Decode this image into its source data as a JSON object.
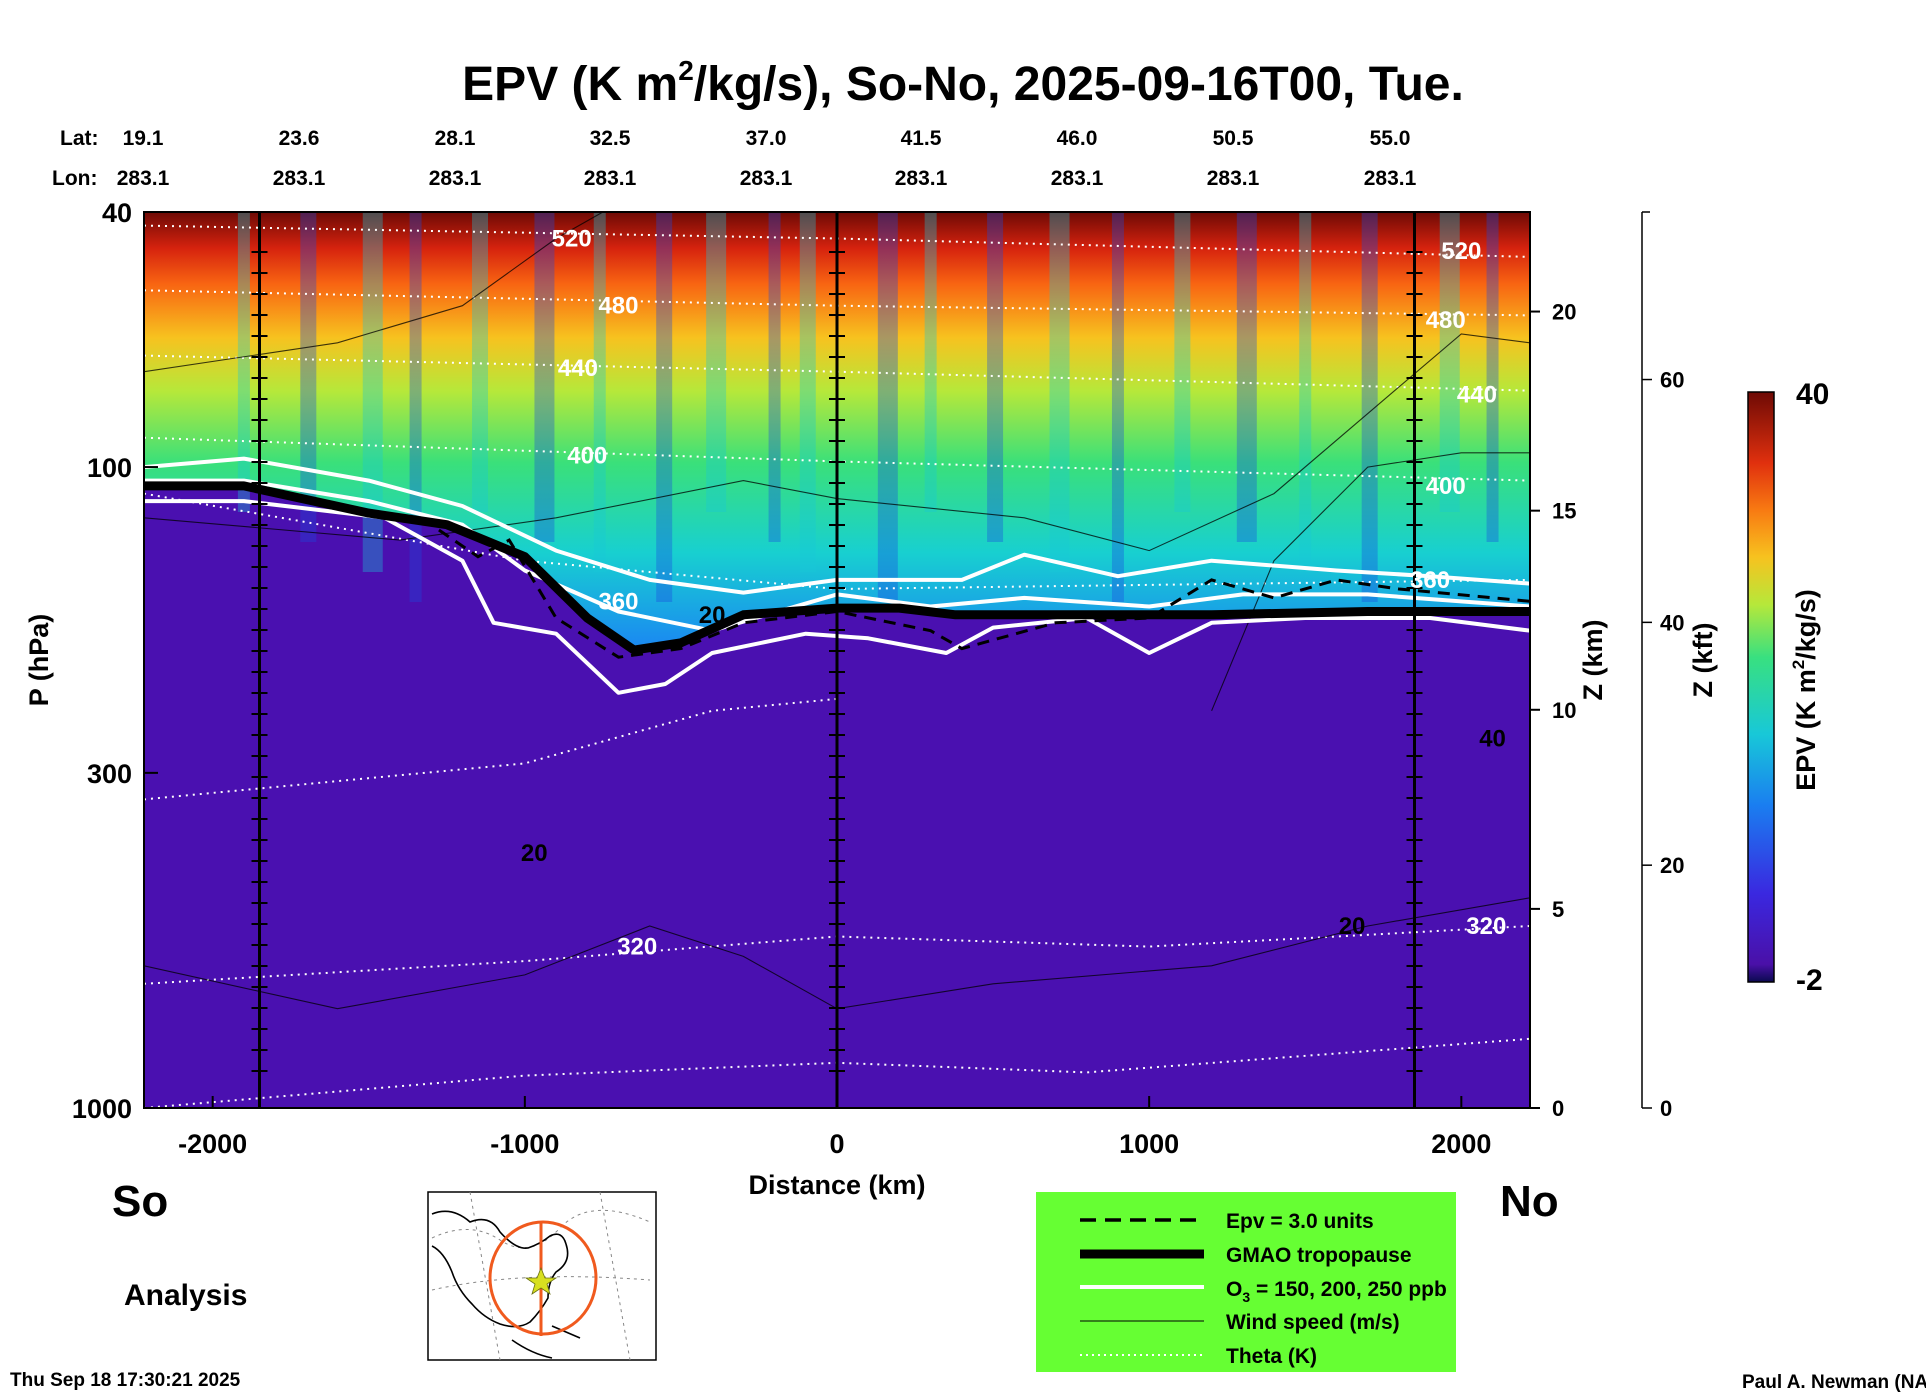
{
  "chart_data": {
    "type": "heatmap",
    "title_main": "EPV (K m",
    "title_sup": "2",
    "title_rest": "/kg/s), So-No, 2025-09-16T00, Tue.",
    "row_labels": {
      "lat": "Lat:",
      "lon": "Lon:"
    },
    "lat_labels": [
      "19.1",
      "23.6",
      "28.1",
      "32.5",
      "37.0",
      "41.5",
      "46.0",
      "50.5",
      "55.0"
    ],
    "lon_labels": [
      "283.1",
      "283.1",
      "283.1",
      "283.1",
      "283.1",
      "283.1",
      "283.1",
      "283.1",
      "283.1"
    ],
    "xlabel": "Distance (km)",
    "x_ticks": [
      -2000,
      -1000,
      0,
      1000,
      2000
    ],
    "x_range": [
      -2220,
      2220
    ],
    "ylabel": "P (hPa)",
    "y_ticks": [
      40,
      100,
      300,
      1000
    ],
    "y_range": [
      1000,
      40
    ],
    "y_scale": "log",
    "z_km_label": "Z (km)",
    "z_km_ticks": [
      0,
      5,
      10,
      15,
      20
    ],
    "z_kft_label": "Z (kft)",
    "z_kft_ticks": [
      0,
      20,
      40,
      60
    ],
    "colorbar": {
      "label_main": "EPV (K m",
      "label_sup": "2",
      "label_rest": "/kg/s)",
      "min": -2,
      "max": 40,
      "min_label": "-2",
      "max_label": "40"
    },
    "vertical_lines_km": [
      -1850,
      0,
      1850
    ],
    "theta_labels": [
      {
        "text": "520",
        "x": -850,
        "p": 44
      },
      {
        "text": "480",
        "x": -700,
        "p": 56
      },
      {
        "text": "440",
        "x": -830,
        "p": 70
      },
      {
        "text": "400",
        "x": -800,
        "p": 96
      },
      {
        "text": "360",
        "x": -700,
        "p": 162
      },
      {
        "text": "320",
        "x": -640,
        "p": 560
      },
      {
        "text": "520",
        "x": 2000,
        "p": 46
      },
      {
        "text": "480",
        "x": 1950,
        "p": 59
      },
      {
        "text": "440",
        "x": 2050,
        "p": 77
      },
      {
        "text": "400",
        "x": 1950,
        "p": 107
      },
      {
        "text": "360",
        "x": 1900,
        "p": 150
      },
      {
        "text": "320",
        "x": 2080,
        "p": 520
      }
    ],
    "wind_labels": [
      {
        "text": "20",
        "x": -400,
        "p": 170
      },
      {
        "text": "20",
        "x": -970,
        "p": 400
      },
      {
        "text": "20",
        "x": 1650,
        "p": 520
      },
      {
        "text": "40",
        "x": 2100,
        "p": 265
      }
    ],
    "epv_surface": [
      {
        "x": -2220,
        "p": 108
      },
      {
        "x": -1900,
        "p": 108
      },
      {
        "x": -1600,
        "p": 115
      },
      {
        "x": -1300,
        "p": 123
      },
      {
        "x": -1150,
        "p": 138
      },
      {
        "x": -1050,
        "p": 130
      },
      {
        "x": -900,
        "p": 172
      },
      {
        "x": -700,
        "p": 198
      },
      {
        "x": -500,
        "p": 192
      },
      {
        "x": -300,
        "p": 175
      },
      {
        "x": 0,
        "p": 168
      },
      {
        "x": 300,
        "p": 180
      },
      {
        "x": 400,
        "p": 192
      },
      {
        "x": 700,
        "p": 175
      },
      {
        "x": 1000,
        "p": 172
      },
      {
        "x": 1200,
        "p": 150
      },
      {
        "x": 1400,
        "p": 160
      },
      {
        "x": 1600,
        "p": 150
      },
      {
        "x": 1800,
        "p": 155
      },
      {
        "x": 2220,
        "p": 162
      }
    ],
    "tropopause": [
      {
        "x": -2220,
        "p": 107
      },
      {
        "x": -1900,
        "p": 107
      },
      {
        "x": -1500,
        "p": 118
      },
      {
        "x": -1250,
        "p": 123
      },
      {
        "x": -1130,
        "p": 130
      },
      {
        "x": -1000,
        "p": 138
      },
      {
        "x": -800,
        "p": 172
      },
      {
        "x": -650,
        "p": 193
      },
      {
        "x": -500,
        "p": 188
      },
      {
        "x": -300,
        "p": 170
      },
      {
        "x": 0,
        "p": 166
      },
      {
        "x": 200,
        "p": 166
      },
      {
        "x": 380,
        "p": 170
      },
      {
        "x": 450,
        "p": 170
      },
      {
        "x": 1200,
        "p": 170
      },
      {
        "x": 1700,
        "p": 168
      },
      {
        "x": 2220,
        "p": 168
      }
    ],
    "ozone_150": [
      {
        "x": -2220,
        "p": 100
      },
      {
        "x": -1900,
        "p": 97
      },
      {
        "x": -1500,
        "p": 105
      },
      {
        "x": -1200,
        "p": 115
      },
      {
        "x": -900,
        "p": 135
      },
      {
        "x": -600,
        "p": 150
      },
      {
        "x": -300,
        "p": 157
      },
      {
        "x": 0,
        "p": 150
      },
      {
        "x": 400,
        "p": 150
      },
      {
        "x": 600,
        "p": 137
      },
      {
        "x": 900,
        "p": 148
      },
      {
        "x": 1200,
        "p": 140
      },
      {
        "x": 1600,
        "p": 145
      },
      {
        "x": 1900,
        "p": 148
      },
      {
        "x": 2220,
        "p": 152
      }
    ],
    "ozone_200": [
      {
        "x": -2220,
        "p": 105
      },
      {
        "x": -1900,
        "p": 105
      },
      {
        "x": -1500,
        "p": 113
      },
      {
        "x": -1200,
        "p": 123
      },
      {
        "x": -1000,
        "p": 145
      },
      {
        "x": -700,
        "p": 168
      },
      {
        "x": -400,
        "p": 180
      },
      {
        "x": 0,
        "p": 158
      },
      {
        "x": 300,
        "p": 165
      },
      {
        "x": 600,
        "p": 160
      },
      {
        "x": 1000,
        "p": 165
      },
      {
        "x": 1300,
        "p": 158
      },
      {
        "x": 1700,
        "p": 158
      },
      {
        "x": 2220,
        "p": 165
      }
    ],
    "ozone_250": [
      {
        "x": -2220,
        "p": 113
      },
      {
        "x": -1900,
        "p": 113
      },
      {
        "x": -1450,
        "p": 120
      },
      {
        "x": -1200,
        "p": 140
      },
      {
        "x": -1100,
        "p": 175
      },
      {
        "x": -900,
        "p": 182
      },
      {
        "x": -700,
        "p": 225
      },
      {
        "x": -550,
        "p": 218
      },
      {
        "x": -400,
        "p": 195
      },
      {
        "x": -100,
        "p": 182
      },
      {
        "x": 100,
        "p": 185
      },
      {
        "x": 350,
        "p": 195
      },
      {
        "x": 500,
        "p": 178
      },
      {
        "x": 800,
        "p": 172
      },
      {
        "x": 1000,
        "p": 195
      },
      {
        "x": 1200,
        "p": 175
      },
      {
        "x": 1500,
        "p": 172
      },
      {
        "x": 1900,
        "p": 172
      },
      {
        "x": 2220,
        "p": 180
      }
    ],
    "theta_lines": [
      {
        "value": 520,
        "points": [
          {
            "x": -2220,
            "p": 42
          },
          {
            "x": 0,
            "p": 44
          },
          {
            "x": 2220,
            "p": 47
          }
        ]
      },
      {
        "value": 480,
        "points": [
          {
            "x": -2220,
            "p": 53
          },
          {
            "x": 0,
            "p": 56
          },
          {
            "x": 2220,
            "p": 58
          }
        ]
      },
      {
        "value": 440,
        "points": [
          {
            "x": -2220,
            "p": 67
          },
          {
            "x": 0,
            "p": 71
          },
          {
            "x": 2220,
            "p": 76
          }
        ]
      },
      {
        "value": 400,
        "points": [
          {
            "x": -2220,
            "p": 90
          },
          {
            "x": 0,
            "p": 98
          },
          {
            "x": 2220,
            "p": 105
          }
        ]
      },
      {
        "value": 360,
        "points": [
          {
            "x": -2220,
            "p": 110
          },
          {
            "x": -1000,
            "p": 140
          },
          {
            "x": 0,
            "p": 155
          },
          {
            "x": 2220,
            "p": 150
          }
        ]
      },
      {
        "value": 320,
        "points": [
          {
            "x": -2220,
            "p": 640
          },
          {
            "x": -1000,
            "p": 590
          },
          {
            "x": 0,
            "p": 540
          },
          {
            "x": 1000,
            "p": 560
          },
          {
            "x": 2220,
            "p": 520
          }
        ]
      },
      {
        "value": 300,
        "points": [
          {
            "x": -2220,
            "p": 1000
          },
          {
            "x": -1000,
            "p": 890
          },
          {
            "x": 0,
            "p": 850
          },
          {
            "x": 800,
            "p": 880
          },
          {
            "x": 2220,
            "p": 780
          }
        ]
      },
      {
        "value": 340,
        "points": [
          {
            "x": -2220,
            "p": 330
          },
          {
            "x": -1000,
            "p": 290
          },
          {
            "x": -400,
            "p": 240
          },
          {
            "x": 0,
            "p": 230
          }
        ]
      }
    ],
    "wind_lines": [
      {
        "points": [
          {
            "x": -2220,
            "p": 71
          },
          {
            "x": -1600,
            "p": 64
          },
          {
            "x": -1200,
            "p": 56
          },
          {
            "x": -900,
            "p": 44
          },
          {
            "x": -750,
            "p": 40
          }
        ]
      },
      {
        "points": [
          {
            "x": -2220,
            "p": 120
          },
          {
            "x": -1400,
            "p": 130
          },
          {
            "x": -900,
            "p": 120
          },
          {
            "x": -300,
            "p": 105
          },
          {
            "x": 0,
            "p": 112
          },
          {
            "x": 600,
            "p": 120
          },
          {
            "x": 1000,
            "p": 135
          },
          {
            "x": 1400,
            "p": 110
          },
          {
            "x": 1800,
            "p": 75
          },
          {
            "x": 2000,
            "p": 62
          },
          {
            "x": 2220,
            "p": 64
          }
        ]
      },
      {
        "points": [
          {
            "x": -2220,
            "p": 600
          },
          {
            "x": -1600,
            "p": 700
          },
          {
            "x": -1000,
            "p": 620
          },
          {
            "x": -600,
            "p": 520
          },
          {
            "x": -300,
            "p": 580
          },
          {
            "x": 0,
            "p": 700
          },
          {
            "x": 500,
            "p": 640
          },
          {
            "x": 1200,
            "p": 600
          },
          {
            "x": 1700,
            "p": 520
          },
          {
            "x": 2220,
            "p": 470
          }
        ]
      },
      {
        "points": [
          {
            "x": 1200,
            "p": 240
          },
          {
            "x": 1400,
            "p": 140
          },
          {
            "x": 1700,
            "p": 100
          },
          {
            "x": 2000,
            "p": 95
          },
          {
            "x": 2220,
            "p": 95
          }
        ]
      }
    ],
    "inset_map_label": "",
    "legend": [
      {
        "label": "Epv = 3.0 units",
        "style": "dashed"
      },
      {
        "label": "GMAO tropopause",
        "style": "thick"
      },
      {
        "label": "O",
        "sub": "3",
        "rest": " = 150, 200, 250 ppb",
        "style": "white"
      },
      {
        "label": "Wind speed (m/s)",
        "style": "thin"
      },
      {
        "label": "Theta (K)",
        "style": "dotted"
      }
    ],
    "legend_bg": "#66ff33",
    "labels": {
      "south": "So",
      "north": "No",
      "analysis": "Analysis",
      "timestamp": "Thu Sep 18 17:30:21 2025",
      "credit": "Paul A. Newman (NASA"
    }
  }
}
